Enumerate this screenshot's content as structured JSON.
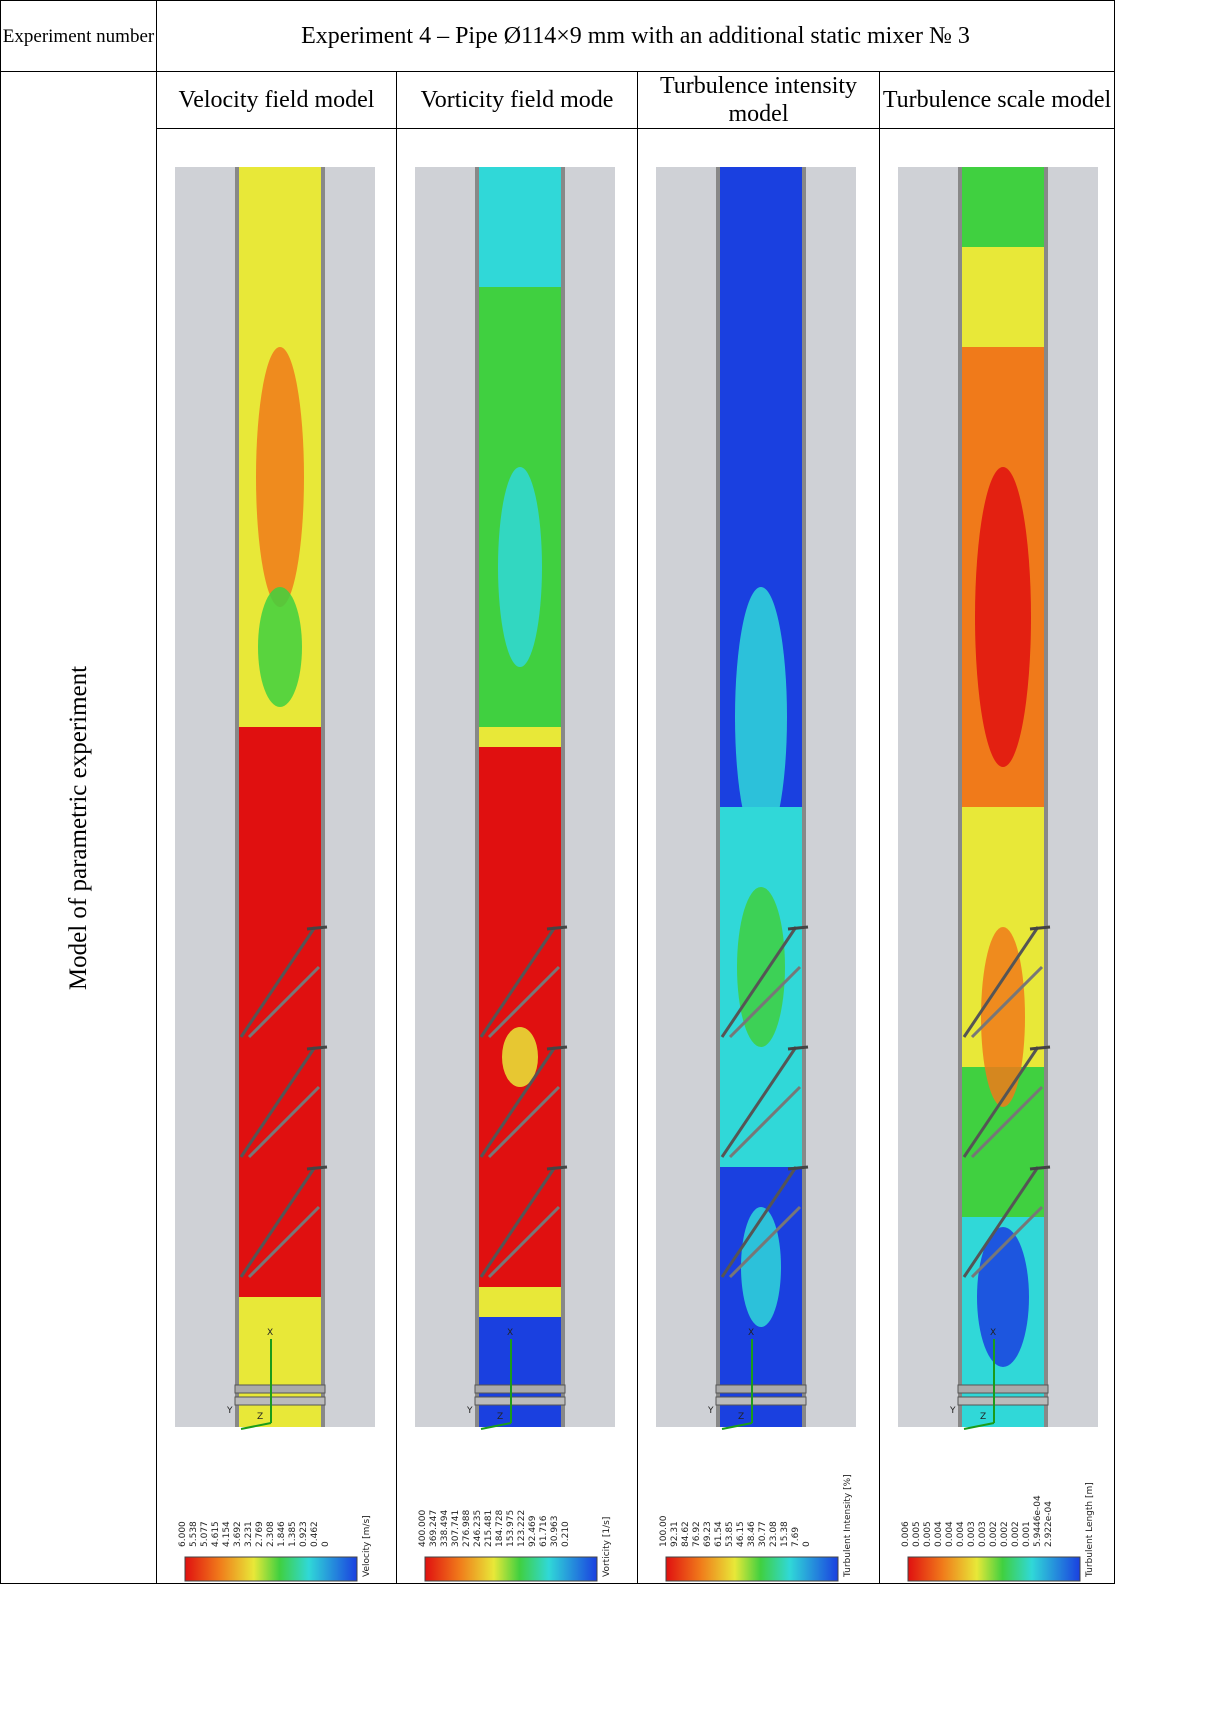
{
  "header": {
    "number_label": "Experiment number",
    "title": "Experiment 4 – Pipe Ø114×9 mm with an additional static mixer № 3"
  },
  "side_label": "Model  of parametric experiment",
  "columns": [
    {
      "title": "Velocity field model",
      "scale_title": "Velocity [m/s]",
      "values": [
        "6.000",
        "5.538",
        "5.077",
        "4.615",
        "4.154",
        "3.692",
        "3.231",
        "2.769",
        "2.308",
        "1.846",
        "1.385",
        "0.923",
        "0.462",
        "0"
      ]
    },
    {
      "title": "Vorticity field mode",
      "scale_title": "Vorticity [1/s]",
      "values": [
        "400.000",
        "369.247",
        "338.494",
        "307.741",
        "276.988",
        "246.235",
        "215.481",
        "184.728",
        "153.975",
        "123.222",
        "92.469",
        "61.716",
        "30.963",
        "0.210"
      ]
    },
    {
      "title": "Turbulence intensity model",
      "scale_title": "Turbulent Intensity [%]",
      "values": [
        "100.00",
        "92.31",
        "84.62",
        "76.92",
        "69.23",
        "61.54",
        "53.85",
        "46.15",
        "38.46",
        "30.77",
        "23.08",
        "15.38",
        "7.69",
        "0"
      ]
    },
    {
      "title": "Turbulence scale model",
      "scale_title": "Turbulent Length [m]",
      "values": [
        "0.006",
        "0.005",
        "0.005",
        "0.004",
        "0.004",
        "0.004",
        "0.003",
        "0.003",
        "0.002",
        "0.002",
        "0.002",
        "0.001",
        "5.9446e-04",
        "2.922e-04"
      ]
    }
  ],
  "axis_labels": {
    "x": "X",
    "y": "Y",
    "z": "Z"
  },
  "colors": {
    "background": "#cfd1d6",
    "red": "#e01010",
    "orange": "#f07a1a",
    "yellow": "#e8e838",
    "green": "#40d040",
    "cyan": "#30d8d8",
    "blue": "#1a40e0",
    "dark_blue": "#0a10c0"
  },
  "icons": [
    "coordinate-axes-icon",
    "mixer-blades-icon",
    "color-scale-bar"
  ]
}
